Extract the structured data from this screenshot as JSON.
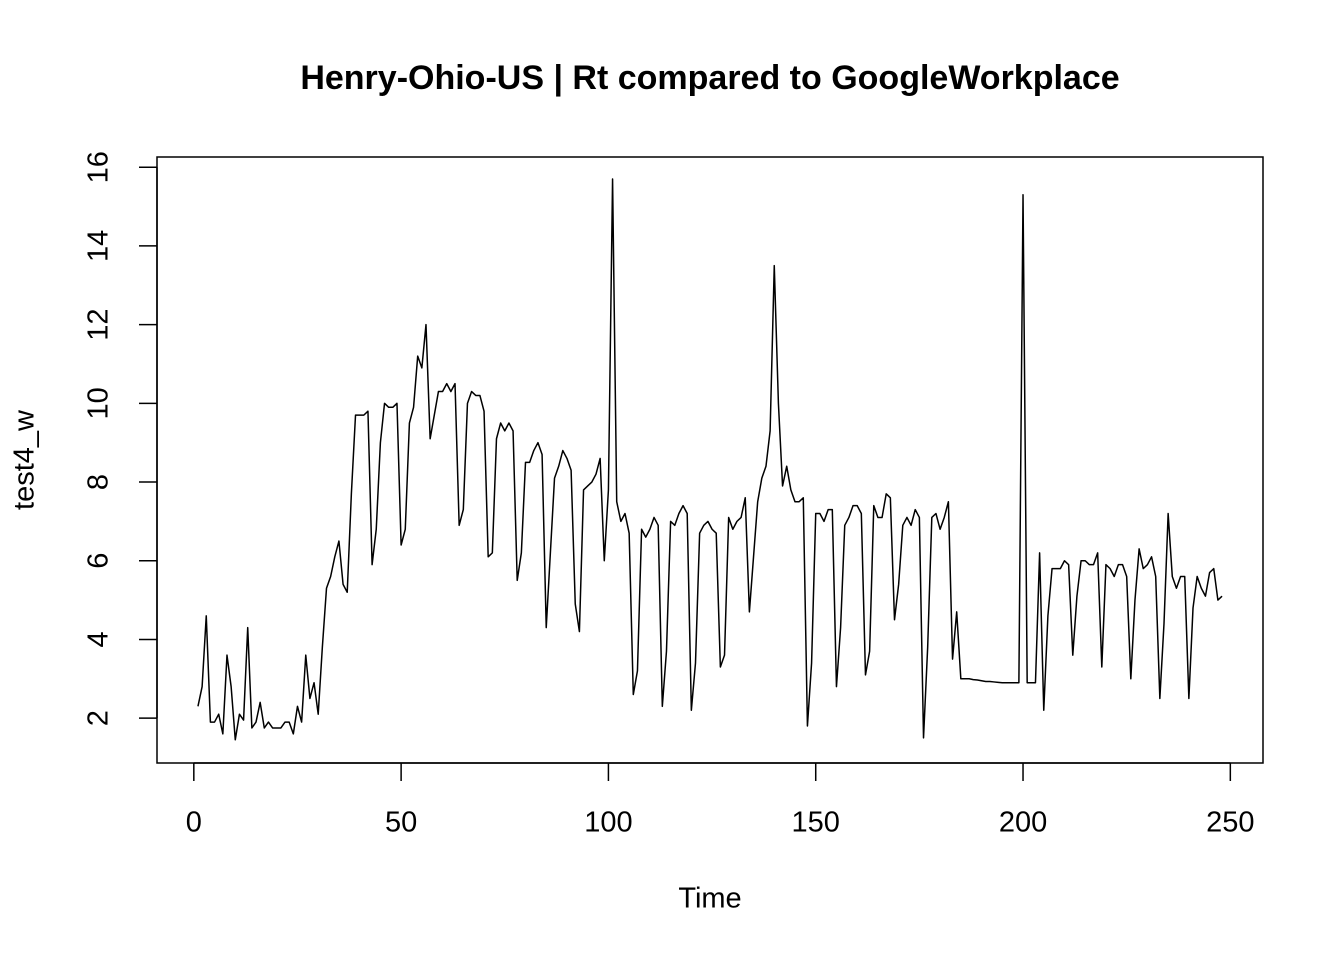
{
  "chart_data": {
    "type": "line",
    "title": "Henry-Ohio-US | Rt compared to GoogleWorkplace",
    "x_label": "Time",
    "y_label": "test4_w",
    "x": [
      1,
      2,
      3,
      4,
      5,
      6,
      7,
      8,
      9,
      10,
      11,
      12,
      13,
      14,
      15,
      16,
      17,
      18,
      19,
      20,
      21,
      22,
      23,
      24,
      25,
      26,
      27,
      28,
      29,
      30,
      31,
      32,
      33,
      34,
      35,
      36,
      37,
      38,
      39,
      40,
      41,
      42,
      43,
      44,
      45,
      46,
      47,
      48,
      49,
      50,
      51,
      52,
      53,
      54,
      55,
      56,
      57,
      58,
      59,
      60,
      61,
      62,
      63,
      64,
      65,
      66,
      67,
      68,
      69,
      70,
      71,
      72,
      73,
      74,
      75,
      76,
      77,
      78,
      79,
      80,
      81,
      82,
      83,
      84,
      85,
      86,
      87,
      88,
      89,
      90,
      91,
      92,
      93,
      94,
      95,
      96,
      97,
      98,
      99,
      100,
      101,
      102,
      103,
      104,
      105,
      106,
      107,
      108,
      109,
      110,
      111,
      112,
      113,
      114,
      115,
      116,
      117,
      118,
      119,
      120,
      121,
      122,
      123,
      124,
      125,
      126,
      127,
      128,
      129,
      130,
      131,
      132,
      133,
      134,
      135,
      136,
      137,
      138,
      139,
      140,
      141,
      142,
      143,
      144,
      145,
      146,
      147,
      148,
      149,
      150,
      151,
      152,
      153,
      154,
      155,
      156,
      157,
      158,
      159,
      160,
      161,
      162,
      163,
      164,
      165,
      166,
      167,
      168,
      169,
      170,
      171,
      172,
      173,
      174,
      175,
      176,
      177,
      178,
      179,
      180,
      181,
      182,
      183,
      184,
      185,
      186,
      187,
      188,
      189,
      190,
      191,
      192,
      193,
      194,
      195,
      196,
      197,
      198,
      199,
      200,
      201,
      202,
      203,
      204,
      205,
      206,
      207,
      208,
      209,
      210,
      211,
      212,
      213,
      214,
      215,
      216,
      217,
      218,
      219,
      220,
      221,
      222,
      223,
      224,
      225,
      226,
      227,
      228,
      229,
      230,
      231,
      232,
      233,
      234,
      235,
      236,
      237,
      238,
      239,
      240,
      241,
      242,
      243,
      244,
      245,
      246,
      247,
      248
    ],
    "series": [
      {
        "name": "test4_w",
        "color": "#000000",
        "values": [
          2.3,
          2.8,
          4.6,
          1.9,
          1.9,
          2.1,
          1.6,
          3.6,
          2.8,
          1.45,
          2.1,
          1.95,
          4.3,
          1.75,
          1.9,
          2.4,
          1.75,
          1.9,
          1.75,
          1.75,
          1.75,
          1.9,
          1.9,
          1.6,
          2.3,
          1.9,
          3.6,
          2.5,
          2.9,
          2.1,
          3.8,
          5.3,
          5.6,
          6.1,
          6.5,
          5.4,
          5.2,
          7.7,
          9.7,
          9.7,
          9.7,
          9.8,
          5.9,
          6.8,
          9.0,
          10.0,
          9.9,
          9.9,
          10.0,
          6.4,
          6.8,
          9.5,
          9.9,
          11.2,
          10.9,
          12.0,
          9.1,
          9.7,
          10.3,
          10.3,
          10.5,
          10.3,
          10.5,
          6.9,
          7.3,
          10.0,
          10.3,
          10.2,
          10.2,
          9.8,
          6.1,
          6.2,
          9.1,
          9.5,
          9.3,
          9.5,
          9.3,
          5.5,
          6.2,
          8.5,
          8.5,
          8.8,
          9.0,
          8.7,
          4.3,
          6.2,
          8.1,
          8.4,
          8.8,
          8.6,
          8.3,
          4.9,
          4.2,
          7.8,
          7.9,
          8.0,
          8.2,
          8.6,
          6.0,
          7.8,
          15.7,
          7.5,
          7.0,
          7.2,
          6.7,
          2.6,
          3.2,
          6.8,
          6.6,
          6.8,
          7.1,
          6.9,
          2.3,
          3.7,
          7.0,
          6.9,
          7.2,
          7.4,
          7.2,
          2.2,
          3.4,
          6.7,
          6.9,
          7.0,
          6.8,
          6.7,
          3.3,
          3.6,
          7.1,
          6.8,
          7.0,
          7.1,
          7.6,
          4.7,
          6.1,
          7.5,
          8.1,
          8.4,
          9.3,
          13.5,
          10.0,
          7.9,
          8.4,
          7.8,
          7.5,
          7.5,
          7.6,
          1.8,
          3.4,
          7.2,
          7.2,
          7.0,
          7.3,
          7.3,
          2.8,
          4.3,
          6.9,
          7.1,
          7.4,
          7.4,
          7.2,
          3.1,
          3.7,
          7.4,
          7.1,
          7.1,
          7.7,
          7.6,
          4.5,
          5.4,
          6.9,
          7.1,
          6.9,
          7.3,
          7.1,
          1.5,
          3.8,
          7.1,
          7.2,
          6.8,
          7.1,
          7.5,
          3.5,
          4.7,
          3.0,
          3.0,
          3.0,
          2.98,
          2.97,
          2.95,
          2.93,
          2.93,
          2.92,
          2.91,
          2.9,
          2.9,
          2.9,
          2.9,
          2.9,
          15.3,
          2.9,
          2.9,
          2.9,
          6.2,
          2.2,
          4.6,
          5.8,
          5.8,
          5.8,
          6.0,
          5.9,
          3.6,
          5.1,
          6.0,
          6.0,
          5.9,
          5.9,
          6.2,
          3.3,
          5.9,
          5.8,
          5.6,
          5.9,
          5.9,
          5.6,
          3.0,
          5.0,
          6.3,
          5.8,
          5.9,
          6.1,
          5.6,
          2.5,
          4.4,
          7.2,
          5.6,
          5.3,
          5.6,
          5.6,
          2.5,
          4.8,
          5.6,
          5.3,
          5.1,
          5.7,
          5.8,
          5.0,
          5.1
        ]
      }
    ],
    "xlim": [
      -8.88,
      257.88
    ],
    "xticks": [
      0,
      50,
      100,
      150,
      200,
      250
    ],
    "ylim": [
      0.86,
      16.26
    ],
    "yticks": [
      2,
      4,
      6,
      8,
      10,
      12,
      14,
      16
    ]
  }
}
